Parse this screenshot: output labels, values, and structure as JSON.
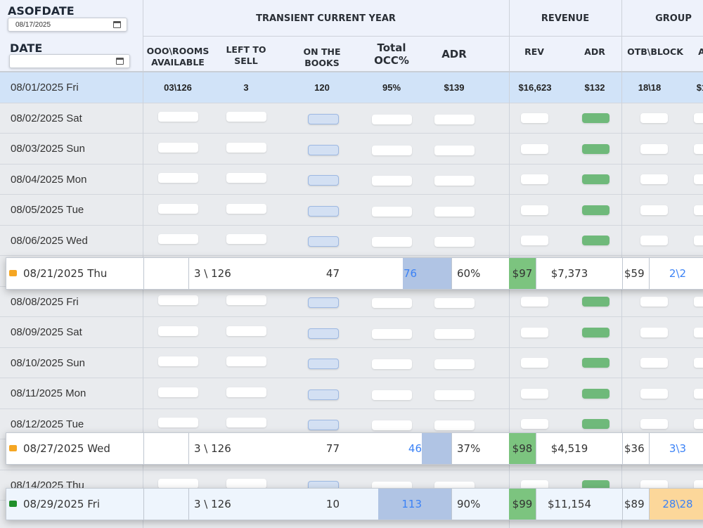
{
  "header": {
    "asofdate_label": "ASOFDATE",
    "asofdate_value": "08/17/2025",
    "date_label": "DATE",
    "date_value": "",
    "groups": {
      "transient": "TRANSIENT CURRENT YEAR",
      "revenue": "REVENUE",
      "group": "GROUP"
    },
    "columns": {
      "ooo_rooms": [
        "OOO\\ROOMS",
        "AVAILABLE"
      ],
      "left_to_sell": [
        "LEFT TO",
        "SELL"
      ],
      "on_the_books": [
        "ON THE",
        "BOOKS"
      ],
      "total_occ": [
        "Total",
        "OCC%"
      ],
      "adr": "ADR",
      "rev": "REV",
      "rev_adr": "ADR",
      "otb_block": "OTB\\BLOCK",
      "partial": "A"
    }
  },
  "summary_row": {
    "date": "08/01/2025 Fri",
    "ooo_rooms": "03\\126",
    "left_to_sell": "3",
    "on_the_books": "120",
    "total_occ": "95%",
    "adr": "$139",
    "rev": "$16,623",
    "rev_adr": "$132",
    "otb_block": "18\\18",
    "partial": "$1"
  },
  "rows": [
    {
      "date": "08/02/2025 Sat"
    },
    {
      "date": "08/03/2025 Sun"
    },
    {
      "date": "08/04/2025 Mon"
    },
    {
      "date": "08/05/2025 Tue"
    },
    {
      "date": "08/06/2025 Wed"
    },
    {
      "date": ""
    },
    {
      "date": "08/08/2025 Fri"
    },
    {
      "date": "08/09/2025 Sat"
    },
    {
      "date": "08/10/2025 Sun"
    },
    {
      "date": "08/11/2025 Mon"
    },
    {
      "date": "08/12/2025 Tue"
    },
    {
      "date": ""
    },
    {
      "date": "08/14/2025 Thu"
    }
  ],
  "floating_rows": [
    {
      "date": "08/21/2025 Thu",
      "flag": "#f5a623",
      "rooms": "3 \\ 126",
      "left": "47",
      "otb": "76",
      "occ": "60%",
      "adr": "$97",
      "rev": "$7,373",
      "rev_adr": "$59",
      "group": "2\\2"
    },
    {
      "date": "08/27/2025 Wed",
      "flag": "#f5a623",
      "rooms": "3 \\ 126",
      "left": "77",
      "otb": "46",
      "occ": "37%",
      "adr": "$98",
      "rev": "$4,519",
      "rev_adr": "$36",
      "group": "3\\3"
    },
    {
      "date": "08/29/2025 Fri",
      "flag": "#1f8f2a",
      "rooms": "3 \\ 126",
      "left": "10",
      "otb": "113",
      "occ": "90%",
      "adr": "$99",
      "rev": "$11,154",
      "rev_adr": "$89",
      "group": "28\\28"
    }
  ],
  "colors": {
    "header_bg": "#eef2fb",
    "highlight_row": "#d1e3f8",
    "otb_fill": "#b0c4e4",
    "adr_green": "#7cc47f",
    "group_orange": "#fcd79a",
    "link_blue": "#3b82f6"
  }
}
